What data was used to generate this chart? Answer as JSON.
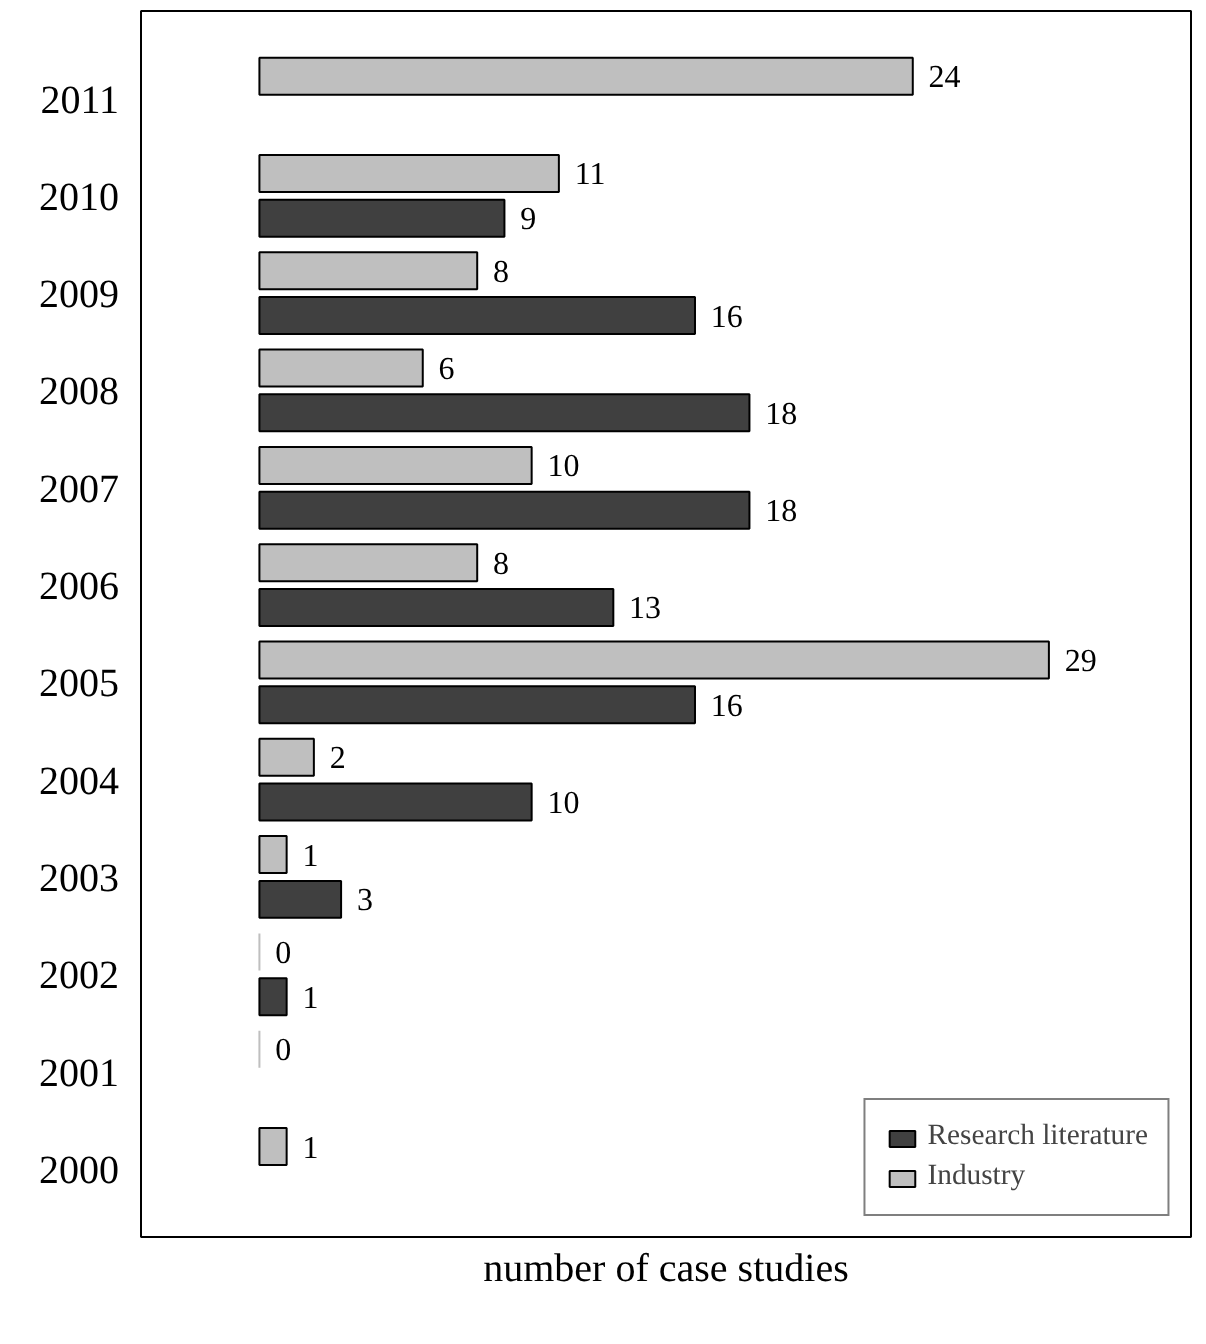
{
  "chart_data": {
    "type": "bar",
    "orientation": "horizontal",
    "xlabel": "number of case studies",
    "categories": [
      "2011",
      "2010",
      "2009",
      "2008",
      "2007",
      "2006",
      "2005",
      "2004",
      "2003",
      "2002",
      "2001",
      "2000"
    ],
    "series": [
      {
        "name": "Industry",
        "color": "#bfbfbf",
        "values": [
          24,
          11,
          8,
          6,
          10,
          8,
          29,
          2,
          1,
          0,
          0,
          1
        ]
      },
      {
        "name": "Research literature",
        "color": "#404040",
        "values": [
          null,
          9,
          16,
          18,
          18,
          13,
          16,
          10,
          3,
          1,
          null,
          null
        ]
      }
    ],
    "data_labels": true,
    "legend": "bottom right",
    "grid": false,
    "tick_labels": "y"
  }
}
